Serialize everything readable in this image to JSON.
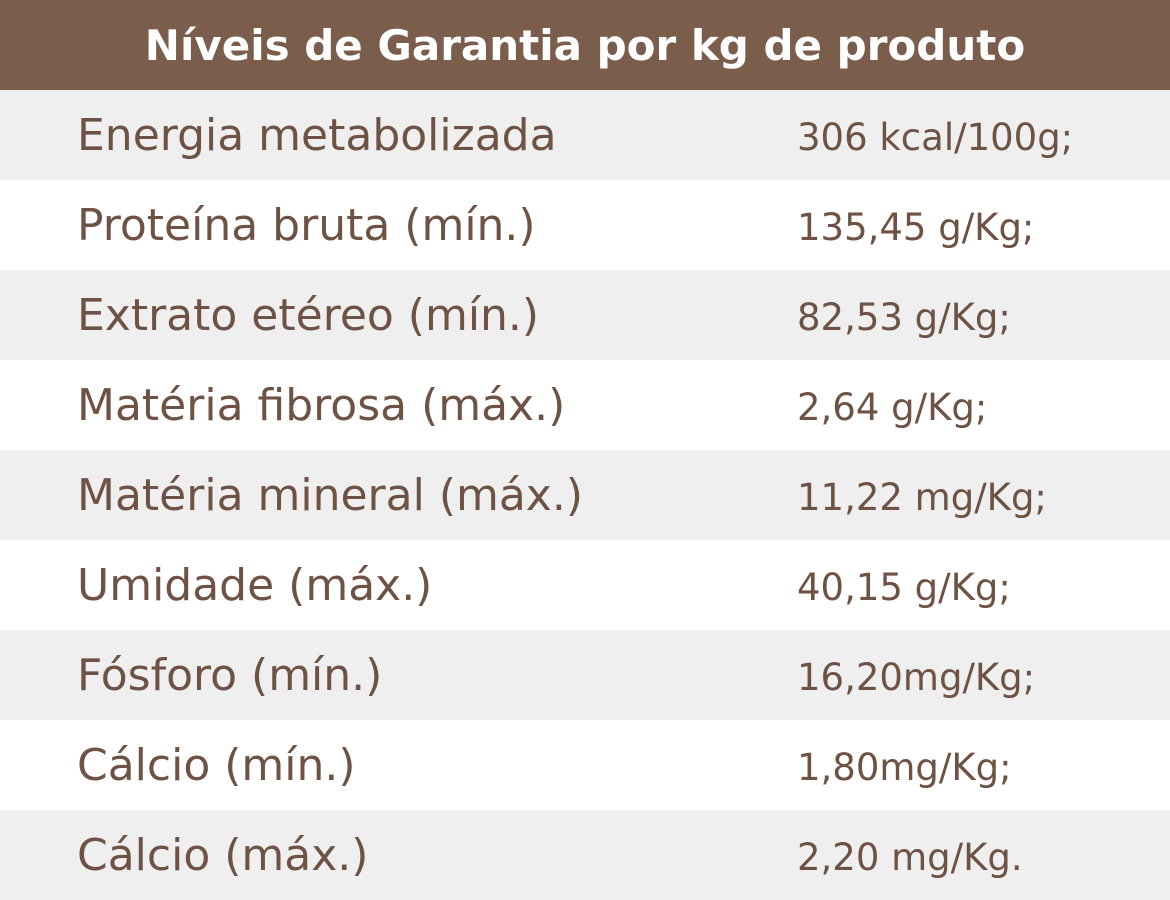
{
  "header": {
    "title": "Níveis de Garantia por kg de produto"
  },
  "table": {
    "rows": [
      [
        "Energia metabolizada",
        "306 kcal/100g;"
      ],
      [
        "Proteína bruta (mín.)",
        "135,45 g/Kg;"
      ],
      [
        "Extrato etéreo (mín.)",
        "82,53 g/Kg;"
      ],
      [
        "Matéria fibrosa (máx.)",
        "2,64 g/Kg;"
      ],
      [
        "Matéria mineral (máx.)",
        "11,22 mg/Kg;"
      ],
      [
        "Umidade (máx.)",
        "40,15 g/Kg;"
      ],
      [
        "Fósforo (mín.)",
        "16,20mg/Kg;"
      ],
      [
        "Cálcio (mín.)",
        "1,80mg/Kg;"
      ],
      [
        "Cálcio (máx.)",
        "2,20 mg/Kg."
      ]
    ]
  }
}
